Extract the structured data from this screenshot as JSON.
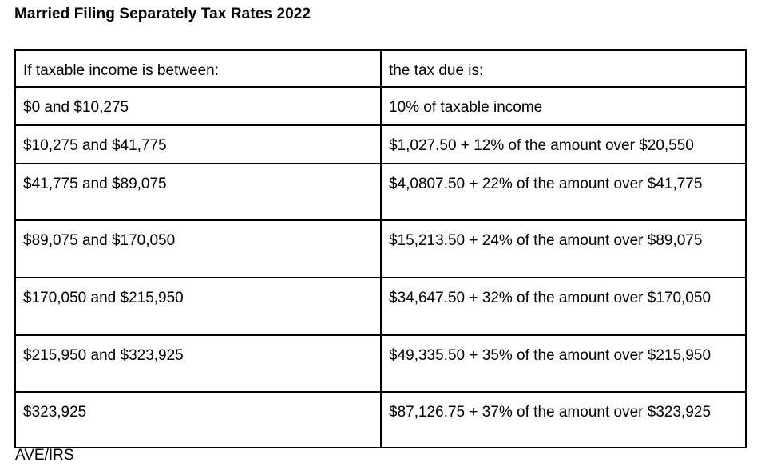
{
  "title": "Married Filing Separately Tax Rates 2022",
  "table": {
    "headers": {
      "income": "If taxable income is between:",
      "tax": "the tax due is:"
    },
    "rows": [
      {
        "income": "$0 and $10,275",
        "tax": "10% of taxable income"
      },
      {
        "income": "$10,275 and $41,775",
        "tax": "$1,027.50 + 12% of the amount over $20,550"
      },
      {
        "income": "$41,775 and $89,075",
        "tax": "$4,0807.50 + 22% of the amount over $41,775"
      },
      {
        "income": "$89,075 and $170,050",
        "tax": "$15,213.50 + 24% of the amount over $89,075"
      },
      {
        "income": "$170,050 and $215,950",
        "tax": "$34,647.50 + 32% of the amount over $170,050"
      },
      {
        "income": "$215,950 and $323,925",
        "tax": "$49,335.50 + 35% of the amount over $215,950"
      },
      {
        "income": "$323,925",
        "tax": "$87,126.75 + 37% of the amount over $323,925"
      }
    ]
  },
  "footer": {
    "source": "AVE/IRS"
  },
  "colors": {
    "border": "#000000",
    "text": "#000000",
    "background": "#ffffff"
  },
  "chart_data": {
    "type": "table",
    "title": "Married Filing Separately Tax Rates 2022",
    "columns": [
      "If taxable income is between:",
      "the tax due is:"
    ],
    "rows": [
      [
        "$0 and $10,275",
        "10% of taxable income"
      ],
      [
        "$10,275 and $41,775",
        "$1,027.50 + 12% of the amount over $20,550"
      ],
      [
        "$41,775 and $89,075",
        "$4,0807.50 + 22% of the amount over $41,775"
      ],
      [
        "$89,075 and $170,050",
        "$15,213.50 + 24% of the amount over $89,075"
      ],
      [
        "$170,050 and $215,950",
        "$34,647.50 + 32% of the amount over $170,050"
      ],
      [
        "$215,950 and $323,925",
        "$49,335.50 + 35% of the amount over $215,950"
      ],
      [
        "$323,925",
        "$87,126.75 + 37% of the amount over $323,925"
      ]
    ],
    "source": "AVE/IRS",
    "brackets": [
      {
        "lower": 0,
        "upper": 10275,
        "base_tax": 0,
        "rate_pct": 10,
        "over_amount": 0
      },
      {
        "lower": 10275,
        "upper": 41775,
        "base_tax": 1027.5,
        "rate_pct": 12,
        "over_amount": 20550
      },
      {
        "lower": 41775,
        "upper": 89075,
        "base_tax": 40807.5,
        "rate_pct": 22,
        "over_amount": 41775
      },
      {
        "lower": 89075,
        "upper": 170050,
        "base_tax": 15213.5,
        "rate_pct": 24,
        "over_amount": 89075
      },
      {
        "lower": 170050,
        "upper": 215950,
        "base_tax": 34647.5,
        "rate_pct": 32,
        "over_amount": 170050
      },
      {
        "lower": 215950,
        "upper": 323925,
        "base_tax": 49335.5,
        "rate_pct": 35,
        "over_amount": 215950
      },
      {
        "lower": 323925,
        "upper": null,
        "base_tax": 87126.75,
        "rate_pct": 37,
        "over_amount": 323925
      }
    ]
  }
}
